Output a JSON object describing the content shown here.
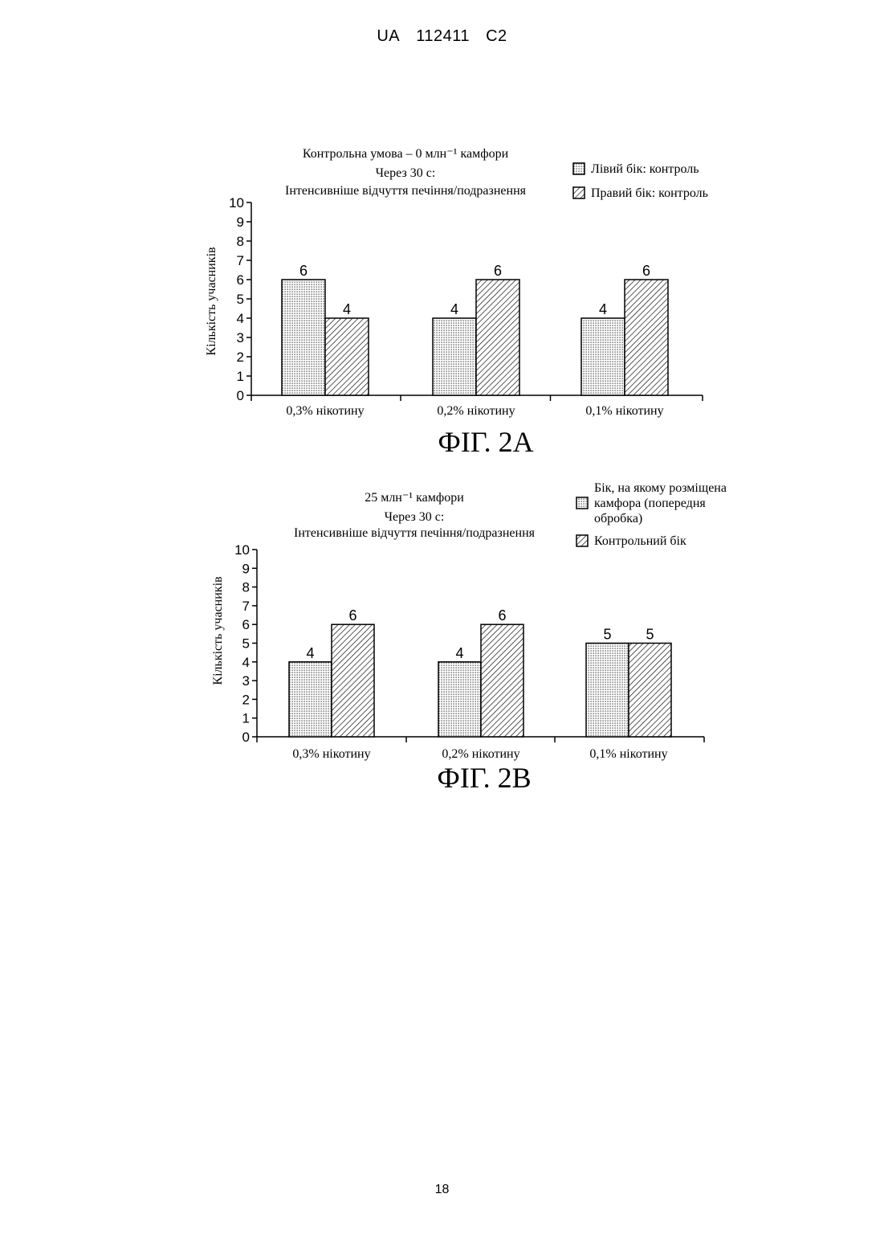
{
  "header": {
    "country": "UA",
    "number": "112411",
    "kind": "C2"
  },
  "page_number": "18",
  "chart_data": [
    {
      "type": "bar",
      "figure_label": "ФІГ. 2А",
      "title_lines": [
        "Контрольна умова – 0 млн⁻¹ камфори",
        "Через 30 с:",
        "Інтенсивніше відчуття печіння/подразнення"
      ],
      "ylabel": "Кількість учасників",
      "xlabel": "",
      "ylim": [
        0,
        10
      ],
      "yticks": [
        "0",
        "1",
        "2",
        "3",
        "4",
        "5",
        "6",
        "7",
        "8",
        "9",
        "10"
      ],
      "categories": [
        "0,3% нікотину",
        "0,2% нікотину",
        "0,1% нікотину"
      ],
      "series": [
        {
          "name": "Лівий бік: контроль",
          "pattern": "dots",
          "values": [
            6,
            4,
            4
          ],
          "labels": [
            "6",
            "4",
            "4"
          ]
        },
        {
          "name": "Правий бік: контроль",
          "pattern": "hatch",
          "values": [
            4,
            6,
            6
          ],
          "labels": [
            "4",
            "6",
            "6"
          ]
        }
      ],
      "legend_lines": [
        [
          "Лівий бік: контроль"
        ],
        [
          "Правий бік: контроль"
        ]
      ],
      "legend_position": "top-right",
      "grid": false
    },
    {
      "type": "bar",
      "figure_label": "ФІГ. 2В",
      "title_lines": [
        "25 млн⁻¹ камфори",
        "Через 30 с:",
        "Інтенсивніше відчуття печіння/подразнення"
      ],
      "ylabel": "Кількість учасників",
      "xlabel": "",
      "ylim": [
        0,
        10
      ],
      "yticks": [
        "0",
        "1",
        "2",
        "3",
        "4",
        "5",
        "6",
        "7",
        "8",
        "9",
        "10"
      ],
      "categories": [
        "0,3% нікотину",
        "0,2% нікотину",
        "0,1% нікотину"
      ],
      "series": [
        {
          "name": "Бік, на якому розміщена камфора (попередня обробка)",
          "pattern": "dots",
          "values": [
            4,
            4,
            5
          ],
          "labels": [
            "4",
            "4",
            "5"
          ]
        },
        {
          "name": "Контрольний бік",
          "pattern": "hatch",
          "values": [
            6,
            6,
            5
          ],
          "labels": [
            "6",
            "6",
            "5"
          ]
        }
      ],
      "legend_lines": [
        [
          "Бік, на якому розміщена",
          "камфора (попередня",
          "обробка)"
        ],
        [
          "Контрольний бік"
        ]
      ],
      "legend_position": "top-right",
      "grid": false
    }
  ]
}
